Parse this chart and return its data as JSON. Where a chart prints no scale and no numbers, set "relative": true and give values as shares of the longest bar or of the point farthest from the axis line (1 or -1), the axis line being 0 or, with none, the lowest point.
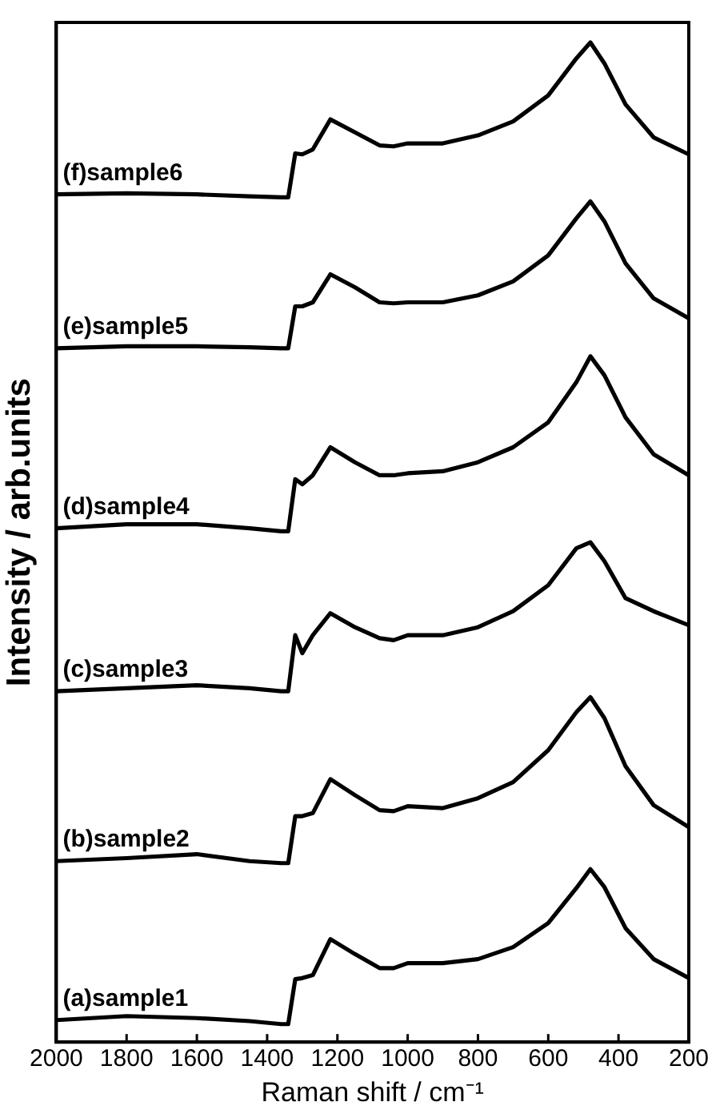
{
  "chart_data": {
    "type": "line",
    "relative": true,
    "xlabel": "Raman shift / cm⁻¹",
    "ylabel": "Intensity / arb.units",
    "x": [
      2000,
      1800,
      1600,
      1450,
      1360,
      1340,
      1320,
      1300,
      1270,
      1220,
      1150,
      1080,
      1040,
      1000,
      900,
      800,
      700,
      600,
      520,
      480,
      440,
      380,
      300,
      200
    ],
    "xlim": [
      2000,
      200
    ],
    "xticks": [
      2000,
      1800,
      1600,
      1400,
      1200,
      1000,
      800,
      600,
      400,
      200
    ],
    "grid": false,
    "tick_labels": "x",
    "marker": "none",
    "line_style": "solid",
    "series": [
      {
        "name": "(a)sample1",
        "color": "#000000",
        "values": [
          0.022,
          0.026,
          0.024,
          0.021,
          0.018,
          0.018,
          0.063,
          0.064,
          0.067,
          0.103,
          0.088,
          0.074,
          0.074,
          0.079,
          0.079,
          0.083,
          0.095,
          0.119,
          0.154,
          0.173,
          0.155,
          0.114,
          0.083,
          0.064
        ]
      },
      {
        "name": "(b)sample2",
        "color": "#000000",
        "values": [
          0.181,
          0.184,
          0.188,
          0.181,
          0.179,
          0.179,
          0.226,
          0.226,
          0.229,
          0.263,
          0.247,
          0.232,
          0.231,
          0.236,
          0.234,
          0.244,
          0.26,
          0.292,
          0.33,
          0.345,
          0.324,
          0.276,
          0.237,
          0.215
        ]
      },
      {
        "name": "(c)sample3",
        "color": "#000000",
        "values": [
          0.351,
          0.354,
          0.357,
          0.354,
          0.351,
          0.351,
          0.407,
          0.389,
          0.407,
          0.429,
          0.415,
          0.404,
          0.402,
          0.407,
          0.407,
          0.415,
          0.431,
          0.457,
          0.494,
          0.5,
          0.481,
          0.444,
          0.431,
          0.417
        ]
      },
      {
        "name": "(d)sample4",
        "color": "#000000",
        "values": [
          0.514,
          0.518,
          0.518,
          0.514,
          0.511,
          0.511,
          0.563,
          0.558,
          0.567,
          0.595,
          0.58,
          0.567,
          0.567,
          0.569,
          0.571,
          0.58,
          0.595,
          0.62,
          0.66,
          0.686,
          0.667,
          0.625,
          0.588,
          0.567
        ]
      },
      {
        "name": "(e)sample5",
        "color": "#000000",
        "values": [
          0.694,
          0.696,
          0.696,
          0.695,
          0.694,
          0.694,
          0.736,
          0.736,
          0.74,
          0.768,
          0.755,
          0.74,
          0.739,
          0.74,
          0.74,
          0.747,
          0.761,
          0.787,
          0.824,
          0.841,
          0.821,
          0.779,
          0.744,
          0.724
        ]
      },
      {
        "name": "(f)sample6",
        "color": "#000000",
        "values": [
          0.848,
          0.849,
          0.848,
          0.846,
          0.845,
          0.845,
          0.889,
          0.888,
          0.893,
          0.923,
          0.91,
          0.897,
          0.896,
          0.899,
          0.899,
          0.907,
          0.921,
          0.947,
          0.984,
          1,
          0.979,
          0.938,
          0.905,
          0.888
        ]
      }
    ]
  }
}
